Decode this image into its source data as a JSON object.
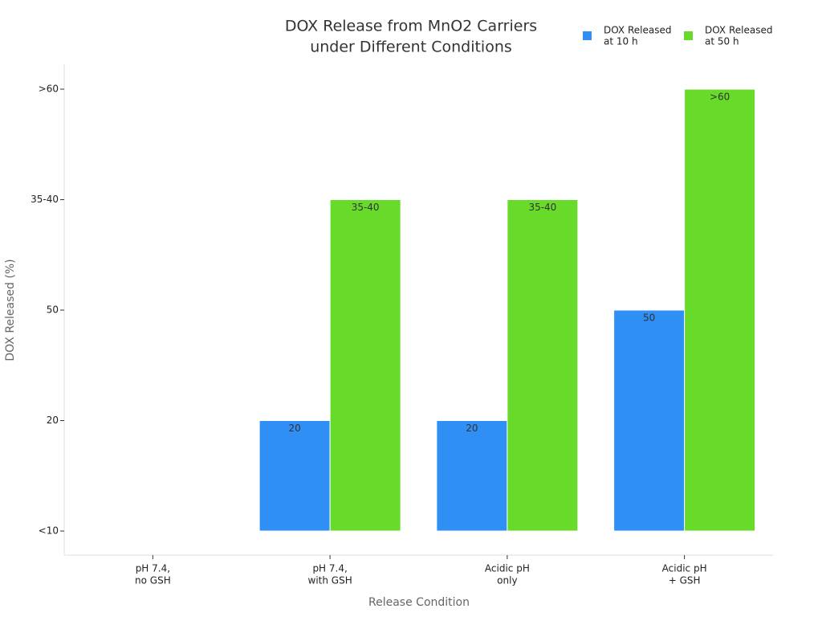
{
  "chart_data": {
    "type": "bar",
    "title": [
      "DOX Release from MnO2 Carriers",
      "under Different Conditions"
    ],
    "x_label": "Release Condition",
    "y_label": "DOX Released (%)",
    "categories": [
      [
        "pH 7.4,",
        "no GSH"
      ],
      [
        "pH 7.4,",
        "with GSH"
      ],
      [
        "Acidic pH",
        "only"
      ],
      [
        "Acidic pH",
        "+ GSH"
      ]
    ],
    "y_categories": [
      "<10",
      "20",
      "50",
      "35-40",
      ">60"
    ],
    "series": [
      {
        "name": [
          "DOX Released",
          "at 10 h"
        ],
        "color": "#2f8ff5",
        "values": [
          null,
          "20",
          "20",
          "50"
        ]
      },
      {
        "name": [
          "DOX Released",
          "at 50 h"
        ],
        "color": "#68da2a",
        "values": [
          null,
          "35-40",
          "35-40",
          ">60"
        ]
      }
    ],
    "legend": "top-right"
  }
}
